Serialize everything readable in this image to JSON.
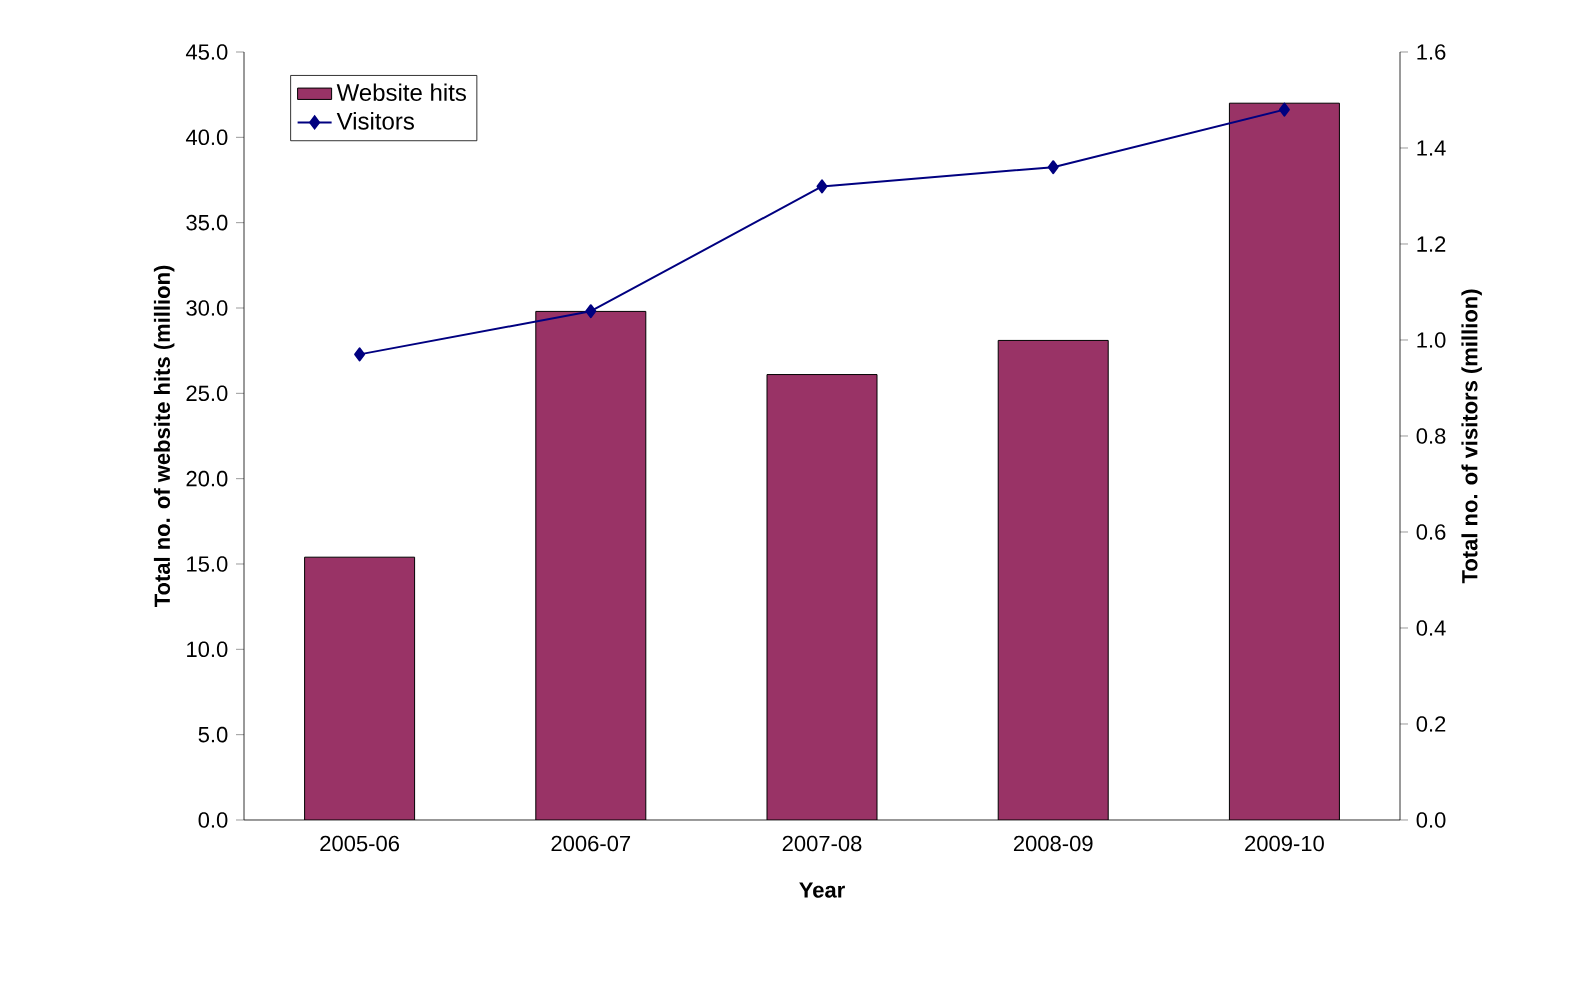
{
  "chart_data": {
    "type": "bar",
    "xlabel": "Year",
    "ylabel": "Total no. of website hits (million)",
    "y2label": "Total no. of visitors (million)",
    "categories": [
      "2005-06",
      "2006-07",
      "2007-08",
      "2008-09",
      "2009-10"
    ],
    "series": [
      {
        "name": "Website hits",
        "color": "#993366",
        "values": [
          15.4,
          29.8,
          26.1,
          28.1,
          42.0
        ]
      },
      {
        "name": "Visitors",
        "type": "line",
        "axis": "y2",
        "color": "#000080",
        "values": [
          0.97,
          1.06,
          1.32,
          1.36,
          1.48
        ]
      }
    ],
    "ylim": [
      0,
      45
    ],
    "yticks": [
      {
        "value": 0,
        "label": "0.0"
      },
      {
        "value": 5,
        "label": "5.0"
      },
      {
        "value": 10,
        "label": "10.0"
      },
      {
        "value": 15,
        "label": "15.0"
      },
      {
        "value": 20,
        "label": "20.0"
      },
      {
        "value": 25,
        "label": "25.0"
      },
      {
        "value": 30,
        "label": "30.0"
      },
      {
        "value": 35,
        "label": "35.0"
      },
      {
        "value": 40,
        "label": "40.0"
      },
      {
        "value": 45,
        "label": "45.0"
      }
    ],
    "y2lim": [
      0,
      1.6
    ],
    "y2ticks": [
      {
        "value": 0,
        "label": "0.0"
      },
      {
        "value": 0.2,
        "label": "0.2"
      },
      {
        "value": 0.4,
        "label": "0.4"
      },
      {
        "value": 0.6,
        "label": "0.6"
      },
      {
        "value": 0.8,
        "label": "0.8"
      },
      {
        "value": 1.0,
        "label": "1.0"
      },
      {
        "value": 1.2,
        "label": "1.2"
      },
      {
        "value": 1.4,
        "label": "1.4"
      },
      {
        "value": 1.6,
        "label": "1.6"
      }
    ],
    "legend": "top left",
    "marker": "diamond",
    "grid": false
  }
}
